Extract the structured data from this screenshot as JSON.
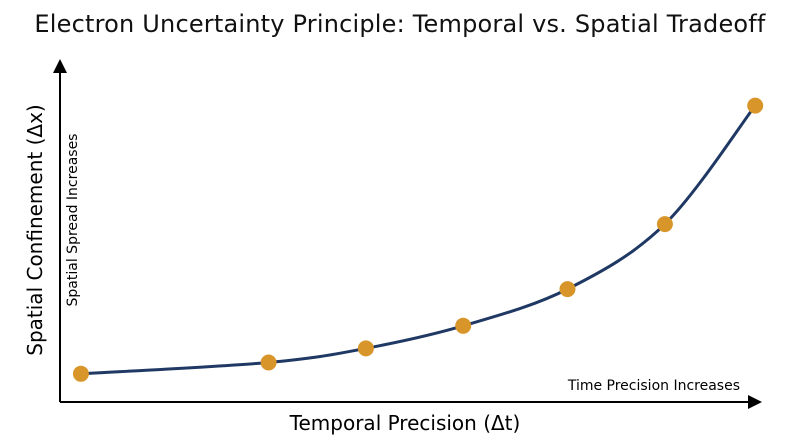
{
  "chart_data": {
    "type": "line",
    "title": "Electron Uncertainty Principle: Temporal vs. Spatial Tradeoff",
    "xlabel": "Temporal Precision (Δt)",
    "ylabel": "Spatial Confinement (Δx)",
    "annotations": {
      "x_direction": "Time Precision Increases",
      "y_direction": "Spatial Spread Increases"
    },
    "axis_ticks": "none",
    "grid": false,
    "series": [
      {
        "x": [
          0.03,
          0.3,
          0.44,
          0.58,
          0.73,
          0.87,
          1.0
        ],
        "y": [
          0.0,
          0.04,
          0.09,
          0.17,
          0.3,
          0.53,
          0.95
        ]
      }
    ],
    "xlim": [
      0,
      1.05
    ],
    "ylim": [
      -0.1,
      1.2
    ],
    "colors": {
      "line": "#1f3864",
      "marker": "#d8962a",
      "axis": "#000000"
    }
  }
}
